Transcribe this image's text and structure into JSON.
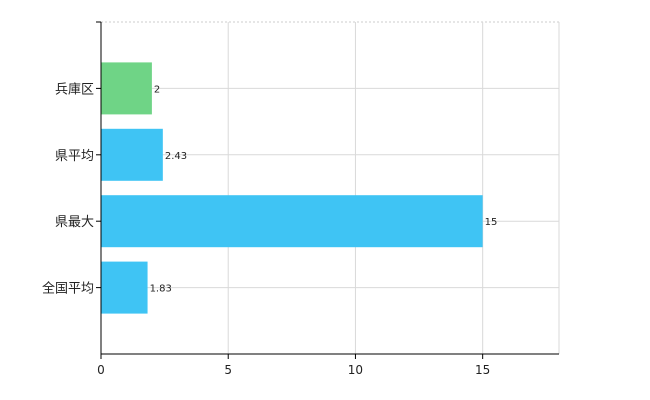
{
  "chart_data": {
    "type": "bar",
    "orientation": "horizontal",
    "categories": [
      "兵庫区",
      "県平均",
      "県最大",
      "全国平均"
    ],
    "values": [
      2,
      2.43,
      15,
      1.83
    ],
    "data_labels": [
      "2",
      "2.43",
      "15",
      "1.83"
    ],
    "bar_colors": [
      "#6fd486",
      "#3fc4f4",
      "#3fc4f4",
      "#3fc4f4"
    ],
    "xlim": [
      0,
      18
    ],
    "x_ticks": [
      0,
      5,
      10,
      15
    ],
    "grid": true,
    "title": "",
    "xlabel": "",
    "ylabel": ""
  }
}
